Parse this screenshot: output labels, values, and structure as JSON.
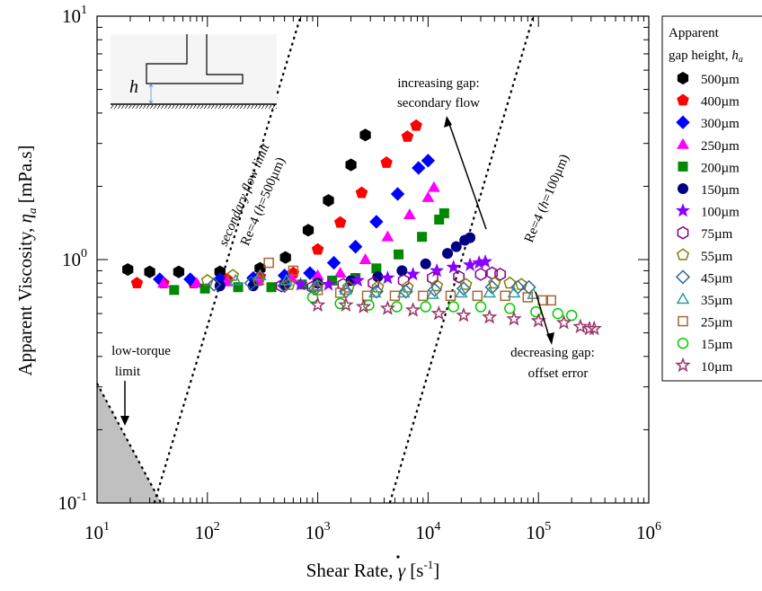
{
  "chart_data": {
    "type": "scatter",
    "x_scale": "log",
    "y_scale": "log",
    "xlim": [
      10,
      1000000
    ],
    "ylim": [
      0.1,
      10
    ],
    "grid": false,
    "legend_position": "right-outside",
    "x_tick_values": [
      10,
      100,
      1000,
      10000,
      100000,
      1000000
    ],
    "x_tick_labels": [
      [
        "10",
        "1"
      ],
      [
        "10",
        "2"
      ],
      [
        "10",
        "3"
      ],
      [
        "10",
        "4"
      ],
      [
        "10",
        "5"
      ],
      [
        "10",
        "6"
      ]
    ],
    "y_tick_values": [
      0.1,
      1,
      10
    ],
    "y_tick_labels": [
      [
        "10",
        "-1"
      ],
      [
        "10",
        "0"
      ],
      [
        "10",
        "1"
      ]
    ],
    "xlabel": {
      "main": "Shear Rate, ",
      "symbol": "γ",
      "unit_open": "  [s",
      "unit_exp": "-1",
      "unit_close": "]"
    },
    "ylabel": {
      "main": "Apparent Viscosity, ",
      "symbol": "η",
      "subscript": "a",
      "unit": "  [mPa.s]"
    },
    "legend_title_line1": "Apparent",
    "legend_title_line2": "gap height, ",
    "legend_title_symbol": "h",
    "legend_title_sub": "a",
    "series": [
      {
        "name": "500µm",
        "marker": "hexagon",
        "color": "#000000",
        "filled": true,
        "points": [
          [
            19,
            0.91
          ],
          [
            30,
            0.89
          ],
          [
            55,
            0.89
          ],
          [
            130,
            0.89
          ],
          [
            300,
            0.92
          ],
          [
            510,
            1.02
          ],
          [
            820,
            1.32
          ],
          [
            1250,
            1.75
          ],
          [
            2000,
            2.45
          ],
          [
            2700,
            3.25
          ]
        ]
      },
      {
        "name": "400µm",
        "marker": "pentagon",
        "color": "#ff0000",
        "filled": true,
        "points": [
          [
            23,
            0.8
          ],
          [
            40,
            0.8
          ],
          [
            75,
            0.8
          ],
          [
            150,
            0.83
          ],
          [
            300,
            0.85
          ],
          [
            600,
            0.88
          ],
          [
            1000,
            1.1
          ],
          [
            1600,
            1.42
          ],
          [
            2500,
            1.88
          ],
          [
            4200,
            2.5
          ],
          [
            6500,
            3.2
          ],
          [
            7800,
            3.55
          ]
        ]
      },
      {
        "name": "300µm",
        "marker": "diamond",
        "color": "#0000ff",
        "filled": true,
        "points": [
          [
            37,
            0.83
          ],
          [
            70,
            0.83
          ],
          [
            130,
            0.83
          ],
          [
            260,
            0.84
          ],
          [
            500,
            0.86
          ],
          [
            850,
            0.88
          ],
          [
            1400,
            0.97
          ],
          [
            2200,
            1.13
          ],
          [
            3400,
            1.43
          ],
          [
            5300,
            1.86
          ],
          [
            8200,
            2.38
          ],
          [
            10000,
            2.55
          ]
        ]
      },
      {
        "name": "250µm",
        "marker": "triangle",
        "color": "#ff00ff",
        "filled": true,
        "points": [
          [
            40,
            0.8
          ],
          [
            80,
            0.8
          ],
          [
            150,
            0.81
          ],
          [
            290,
            0.82
          ],
          [
            580,
            0.84
          ],
          [
            1000,
            0.86
          ],
          [
            1600,
            0.88
          ],
          [
            2700,
            1.0
          ],
          [
            4300,
            1.24
          ],
          [
            6800,
            1.53
          ],
          [
            10000,
            1.8
          ],
          [
            11300,
            1.98
          ]
        ]
      },
      {
        "name": "200µm",
        "marker": "square",
        "color": "#008800",
        "filled": true,
        "points": [
          [
            50,
            0.75
          ],
          [
            95,
            0.76
          ],
          [
            190,
            0.77
          ],
          [
            380,
            0.77
          ],
          [
            720,
            0.79
          ],
          [
            1350,
            0.82
          ],
          [
            2200,
            0.84
          ],
          [
            3400,
            0.92
          ],
          [
            5400,
            1.05
          ],
          [
            8800,
            1.24
          ],
          [
            12600,
            1.46
          ],
          [
            14000,
            1.55
          ]
        ]
      },
      {
        "name": "150µm",
        "marker": "circle",
        "color": "#000080",
        "filled": true,
        "points": [
          [
            130,
            0.78
          ],
          [
            260,
            0.78
          ],
          [
            500,
            0.79
          ],
          [
            1000,
            0.8
          ],
          [
            2000,
            0.82
          ],
          [
            3500,
            0.85
          ],
          [
            5800,
            0.9
          ],
          [
            9500,
            0.96
          ],
          [
            15000,
            1.06
          ],
          [
            18000,
            1.13
          ],
          [
            21500,
            1.2
          ],
          [
            24000,
            1.23
          ]
        ]
      },
      {
        "name": "100µm",
        "marker": "star",
        "color": "#8800ff",
        "filled": true,
        "points": [
          [
            700,
            0.79
          ],
          [
            1250,
            0.79
          ],
          [
            2300,
            0.82
          ],
          [
            4300,
            0.84
          ],
          [
            7300,
            0.87
          ],
          [
            12000,
            0.9
          ],
          [
            17000,
            0.93
          ],
          [
            24000,
            0.95
          ],
          [
            29000,
            0.97
          ],
          [
            33000,
            0.98
          ]
        ]
      },
      {
        "name": "75µm",
        "marker": "hexagon",
        "color": "#880088",
        "filled": false,
        "points": [
          [
            470,
            0.78
          ],
          [
            900,
            0.77
          ],
          [
            1700,
            0.79
          ],
          [
            3200,
            0.8
          ],
          [
            6000,
            0.82
          ],
          [
            11000,
            0.84
          ],
          [
            19000,
            0.85
          ],
          [
            30000,
            0.87
          ],
          [
            38000,
            0.88
          ],
          [
            45000,
            0.87
          ]
        ]
      },
      {
        "name": "55µm",
        "marker": "pentagon",
        "color": "#808000",
        "filled": false,
        "points": [
          [
            100,
            0.82
          ],
          [
            170,
            0.86
          ],
          [
            290,
            0.82
          ],
          [
            550,
            0.79
          ],
          [
            1000,
            0.78
          ],
          [
            1900,
            0.77
          ],
          [
            3500,
            0.77
          ],
          [
            6500,
            0.77
          ],
          [
            12000,
            0.78
          ],
          [
            22000,
            0.79
          ],
          [
            40000,
            0.8
          ],
          [
            55000,
            0.8
          ],
          [
            70000,
            0.79
          ]
        ]
      },
      {
        "name": "45µm",
        "marker": "diamond",
        "color": "#336699",
        "filled": false,
        "points": [
          [
            115,
            0.79
          ],
          [
            250,
            0.8
          ],
          [
            500,
            0.78
          ],
          [
            950,
            0.76
          ],
          [
            1800,
            0.74
          ],
          [
            3400,
            0.74
          ],
          [
            6300,
            0.74
          ],
          [
            11500,
            0.75
          ],
          [
            21000,
            0.76
          ],
          [
            38000,
            0.77
          ],
          [
            65000,
            0.77
          ],
          [
            82000,
            0.77
          ]
        ]
      },
      {
        "name": "35µm",
        "marker": "triangle",
        "color": "#339999",
        "filled": false,
        "points": [
          [
            180,
            0.82
          ],
          [
            300,
            0.86
          ],
          [
            520,
            0.82
          ],
          [
            980,
            0.78
          ],
          [
            1800,
            0.75
          ],
          [
            3300,
            0.73
          ],
          [
            6000,
            0.73
          ],
          [
            11000,
            0.72
          ],
          [
            20000,
            0.73
          ],
          [
            36000,
            0.73
          ],
          [
            60000,
            0.73
          ],
          [
            90000,
            0.72
          ]
        ]
      },
      {
        "name": "25µm",
        "marker": "square",
        "color": "#aa6633",
        "filled": false,
        "points": [
          [
            360,
            0.97
          ],
          [
            600,
            0.9
          ],
          [
            1000,
            0.75
          ],
          [
            1600,
            0.73
          ],
          [
            2800,
            0.71
          ],
          [
            5000,
            0.71
          ],
          [
            9000,
            0.71
          ],
          [
            16000,
            0.71
          ],
          [
            28000,
            0.71
          ],
          [
            50000,
            0.71
          ],
          [
            80000,
            0.7
          ],
          [
            110000,
            0.68
          ],
          [
            130000,
            0.68
          ]
        ]
      },
      {
        "name": "15µm",
        "marker": "circle",
        "color": "#00cc00",
        "filled": false,
        "points": [
          [
            900,
            0.7
          ],
          [
            1600,
            0.66
          ],
          [
            2900,
            0.65
          ],
          [
            5200,
            0.64
          ],
          [
            9500,
            0.64
          ],
          [
            17000,
            0.64
          ],
          [
            30000,
            0.64
          ],
          [
            55000,
            0.63
          ],
          [
            95000,
            0.61
          ],
          [
            150000,
            0.6
          ],
          [
            200000,
            0.59
          ]
        ]
      },
      {
        "name": "10µm",
        "marker": "star",
        "color": "#993366",
        "filled": false,
        "points": [
          [
            1000,
            0.65
          ],
          [
            1800,
            0.65
          ],
          [
            2600,
            0.64
          ],
          [
            4300,
            0.63
          ],
          [
            7300,
            0.62
          ],
          [
            12500,
            0.6
          ],
          [
            21000,
            0.59
          ],
          [
            36000,
            0.58
          ],
          [
            60000,
            0.57
          ],
          [
            100000,
            0.56
          ],
          [
            170000,
            0.55
          ],
          [
            240000,
            0.53
          ],
          [
            290000,
            0.52
          ],
          [
            320000,
            0.52
          ]
        ]
      }
    ],
    "reference_lines": [
      {
        "name": "secondary-flow-limit-500um",
        "style": "dotted",
        "points": [
          [
            33,
            0.1
          ],
          [
            700,
            10
          ]
        ]
      },
      {
        "name": "re4-100um",
        "style": "dotted",
        "points": [
          [
            4500,
            0.1
          ],
          [
            90000,
            10
          ]
        ]
      },
      {
        "name": "low-torque-limit",
        "style": "dotted",
        "points": [
          [
            10,
            0.31
          ],
          [
            38,
            0.1
          ]
        ]
      }
    ],
    "annotations": {
      "secondary_flow_line1": "secondary flow limit",
      "secondary_flow_line2_pre": "Re=4 (",
      "secondary_flow_line2_h": "h",
      "secondary_flow_line2_post": "=500µm)",
      "re100_pre": "Re=4 (",
      "re100_h": "h",
      "re100_post": "=100µm)",
      "increasing_line1": "increasing gap:",
      "increasing_line2": "secondary flow",
      "decreasing_line1": "decreasing gap:",
      "decreasing_line2": "offset error",
      "lowtorque_line1": "low-torque",
      "lowtorque_line2": "limit",
      "inset_label": "h"
    }
  }
}
